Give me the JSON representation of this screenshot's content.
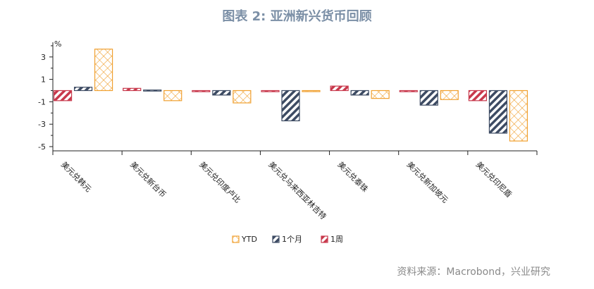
{
  "title": "图表 2: 亚洲新兴货币回顾",
  "source": "资料来源：Macrobond，兴业研究",
  "chart_data": {
    "type": "bar",
    "title": "图表 2: 亚洲新兴货币回顾",
    "ylabel": "%",
    "xlabel": "",
    "ylim": [
      -5.5,
      4
    ],
    "yticks": [
      3,
      1,
      -1,
      -3,
      -5
    ],
    "grid": false,
    "legend_position": "bottom-center",
    "categories": [
      "美元兑韩元",
      "美元兑新台币",
      "美元兑印度卢比",
      "美元兑马来西亚林吉特",
      "美元兑泰铢",
      "美元兑新加坡元",
      "美元兑印尼盾"
    ],
    "series": [
      {
        "name": "1周",
        "color": "#c8394c",
        "pattern": "diagonal-stripes",
        "values": [
          -0.9,
          0.2,
          -0.1,
          -0.1,
          0.4,
          -0.1,
          -0.9
        ]
      },
      {
        "name": "1个月",
        "color": "#3d4b63",
        "pattern": "diagonal-stripes",
        "values": [
          0.3,
          0.05,
          -0.4,
          -2.7,
          -0.4,
          -1.3,
          -3.8
        ]
      },
      {
        "name": "YTD",
        "color": "#f0a030",
        "pattern": "crosshatch",
        "values": [
          3.7,
          -0.9,
          -1.1,
          -0.05,
          -0.7,
          -0.8,
          -4.5
        ]
      }
    ],
    "legend_order": [
      "YTD",
      "1个月",
      "1周"
    ]
  }
}
